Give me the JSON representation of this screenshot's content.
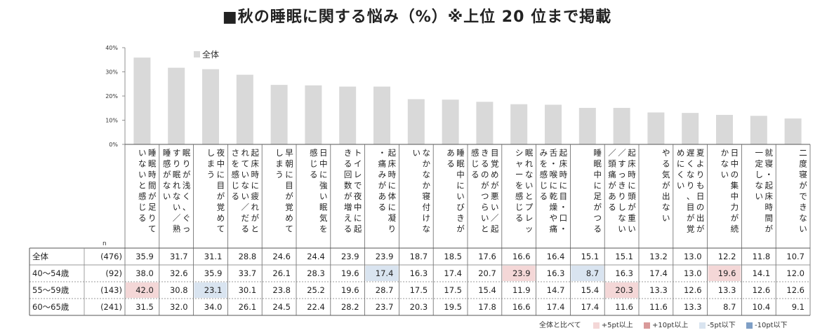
{
  "title": "■秋の睡眠に関する悩み（%）※上位 20 位まで掲載",
  "chart_data": {
    "type": "bar",
    "series_name": "全体",
    "ylim": [
      0,
      40
    ],
    "yticks": [
      "0%",
      "10%",
      "20%",
      "30%",
      "40%"
    ],
    "n_label": "n",
    "categories": [
      "睡眠時間が足りていないと感じる",
      "眠りが浅く、ぐっすり眠れない／熟睡感がない",
      "夜中に目が覚めてしまう",
      "起床時に疲れがとれていない／だるさを感じる",
      "早朝に目が覚めてしまう",
      "日中に強い眠気を感じる",
      "トイレで夜中に起きる回数が増える",
      "起床時に体に凝り・痛みがある",
      "なかなか寝付けない",
      "睡眠中にいびきがある",
      "目覚めが悪い／起きるのがつらいと感じる",
      "眠れないとプレッシャーを感じる",
      "起床時に目・口・舌・喉に乾燥や痛みを感じる",
      "睡眠中に足がつる",
      "起床時に頭が重い／すっきりしない／頭痛がある",
      "やる気が出ない",
      "夏よりも日の出が遅くなり、目が覚めにくい",
      "日中の集中力が続かない",
      "就寝・起床時間が一定しない",
      "二度寝ができない"
    ],
    "values": [
      35.9,
      31.7,
      31.1,
      28.8,
      24.6,
      24.4,
      23.9,
      23.9,
      18.7,
      18.5,
      17.6,
      16.6,
      16.4,
      15.1,
      15.1,
      13.2,
      13.0,
      12.2,
      11.8,
      10.7
    ],
    "rows": [
      {
        "label": "全体",
        "n": "(476)",
        "values": [
          "35.9",
          "31.7",
          "31.1",
          "28.8",
          "24.6",
          "24.4",
          "23.9",
          "23.9",
          "18.7",
          "18.5",
          "17.6",
          "16.6",
          "16.4",
          "15.1",
          "15.1",
          "13.2",
          "13.0",
          "12.2",
          "11.8",
          "10.7"
        ]
      },
      {
        "label": "40～54歳",
        "n": "(92)",
        "values": [
          "38.0",
          "32.6",
          "35.9",
          "33.7",
          "26.1",
          "28.3",
          "19.6",
          "17.4",
          "16.3",
          "17.4",
          "20.7",
          "23.9",
          "16.3",
          "8.7",
          "16.3",
          "17.4",
          "13.0",
          "19.6",
          "14.1",
          "12.0"
        ]
      },
      {
        "label": "55～59歳",
        "n": "(143)",
        "values": [
          "42.0",
          "30.8",
          "23.1",
          "30.1",
          "23.8",
          "25.2",
          "19.6",
          "28.7",
          "17.5",
          "17.5",
          "15.4",
          "11.9",
          "14.7",
          "15.4",
          "20.3",
          "13.3",
          "12.6",
          "13.3",
          "12.6",
          "12.6"
        ]
      },
      {
        "label": "60～65歳",
        "n": "(241)",
        "values": [
          "31.5",
          "32.0",
          "34.0",
          "26.1",
          "24.5",
          "22.4",
          "28.2",
          "23.7",
          "20.3",
          "19.5",
          "17.8",
          "16.6",
          "17.4",
          "17.4",
          "11.6",
          "11.6",
          "13.3",
          "8.7",
          "10.4",
          "9.1"
        ]
      }
    ],
    "highlights": [
      {
        "row": 1,
        "col": 7,
        "level": "-5"
      },
      {
        "row": 1,
        "col": 11,
        "level": "+5"
      },
      {
        "row": 1,
        "col": 13,
        "level": "-5"
      },
      {
        "row": 1,
        "col": 17,
        "level": "+5"
      },
      {
        "row": 2,
        "col": 0,
        "level": "+5"
      },
      {
        "row": 2,
        "col": 2,
        "level": "-5"
      },
      {
        "row": 2,
        "col": 14,
        "level": "+5"
      }
    ],
    "legend": {
      "lead": "全体と比べて",
      "items": [
        {
          "label": "+5pt以上",
          "color": "#f4d7d7"
        },
        {
          "label": "+10pt以上",
          "color": "#d99a9a"
        },
        {
          "label": "-5pt以下",
          "color": "#d9e4f0"
        },
        {
          "label": "-10pt以下",
          "color": "#7f9fc6"
        }
      ]
    },
    "colors": {
      "bar": "#d9d9d9",
      "plus5": "#f4d7d7",
      "minus5": "#d9e4f0",
      "grid": "#555555"
    }
  }
}
